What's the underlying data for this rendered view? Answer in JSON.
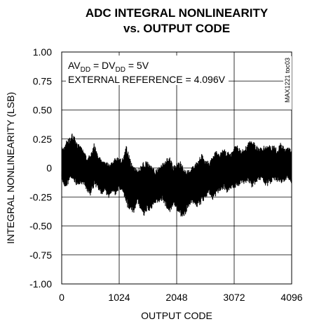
{
  "chart_data": {
    "type": "line",
    "title_line1": "ADC INTEGRAL NONLINEARITY",
    "title_line2": "vs. OUTPUT CODE",
    "xlabel": "OUTPUT CODE",
    "ylabel": "INTEGRAL NONLINEARITY (LSB)",
    "xlim": [
      0,
      4096
    ],
    "ylim": [
      -1.0,
      1.0
    ],
    "xticks": [
      "0",
      "1024",
      "2048",
      "3072",
      "4096"
    ],
    "yticks": [
      "1.00",
      "0.75",
      "0.50",
      "0.25",
      "0",
      "-0.25",
      "-0.50",
      "-0.75",
      "-1.00"
    ],
    "grid": true,
    "annotation": {
      "line1": {
        "a": "AV",
        "a_sub": "DD",
        "b": " = DV",
        "b_sub": "DD",
        "c": " = 5V"
      },
      "line2": "EXTERNAL REFERENCE = 4.096V"
    },
    "figure_code": "MAX1221 toc03",
    "series": [
      {
        "color": "#000000",
        "x": [
          0,
          64,
          128,
          192,
          256,
          320,
          384,
          448,
          512,
          576,
          640,
          704,
          768,
          832,
          896,
          960,
          1024,
          1088,
          1152,
          1216,
          1280,
          1344,
          1408,
          1472,
          1536,
          1600,
          1664,
          1728,
          1792,
          1856,
          1920,
          1984,
          2048,
          2112,
          2176,
          2240,
          2304,
          2368,
          2432,
          2496,
          2560,
          2624,
          2688,
          2752,
          2816,
          2880,
          2944,
          3008,
          3072,
          3136,
          3200,
          3264,
          3328,
          3392,
          3456,
          3520,
          3584,
          3648,
          3712,
          3776,
          3840,
          3904,
          3968,
          4032,
          4096
        ],
        "y_upper": [
          0.18,
          0.22,
          0.26,
          0.31,
          0.24,
          0.2,
          0.15,
          0.1,
          0.12,
          0.22,
          0.12,
          0.08,
          0.06,
          0.04,
          0.05,
          0.1,
          0.08,
          0.09,
          0.2,
          0.08,
          0.02,
          0.0,
          0.03,
          0.06,
          0.07,
          0.02,
          -0.02,
          0.0,
          0.04,
          0.08,
          0.1,
          0.02,
          0.04,
          0.06,
          0.01,
          -0.02,
          0.0,
          0.03,
          0.08,
          0.12,
          0.08,
          0.05,
          0.1,
          0.15,
          0.12,
          0.17,
          0.14,
          0.13,
          0.18,
          0.2,
          0.15,
          0.18,
          0.22,
          0.25,
          0.2,
          0.17,
          0.18,
          0.21,
          0.19,
          0.2,
          0.16,
          0.22,
          0.17,
          0.18,
          0.15
        ],
        "y_lower": [
          -0.12,
          -0.17,
          -0.13,
          -0.1,
          -0.15,
          -0.14,
          -0.14,
          -0.2,
          -0.24,
          -0.16,
          -0.17,
          -0.24,
          -0.2,
          -0.26,
          -0.22,
          -0.24,
          -0.18,
          -0.22,
          -0.34,
          -0.36,
          -0.4,
          -0.3,
          -0.36,
          -0.42,
          -0.38,
          -0.35,
          -0.3,
          -0.3,
          -0.28,
          -0.34,
          -0.4,
          -0.32,
          -0.36,
          -0.42,
          -0.44,
          -0.36,
          -0.3,
          -0.32,
          -0.34,
          -0.3,
          -0.26,
          -0.22,
          -0.28,
          -0.24,
          -0.2,
          -0.18,
          -0.22,
          -0.18,
          -0.18,
          -0.16,
          -0.14,
          -0.14,
          -0.12,
          -0.18,
          -0.14,
          -0.1,
          -0.12,
          -0.16,
          -0.14,
          -0.1,
          -0.12,
          -0.14,
          -0.12,
          -0.1,
          -0.14
        ]
      }
    ]
  }
}
